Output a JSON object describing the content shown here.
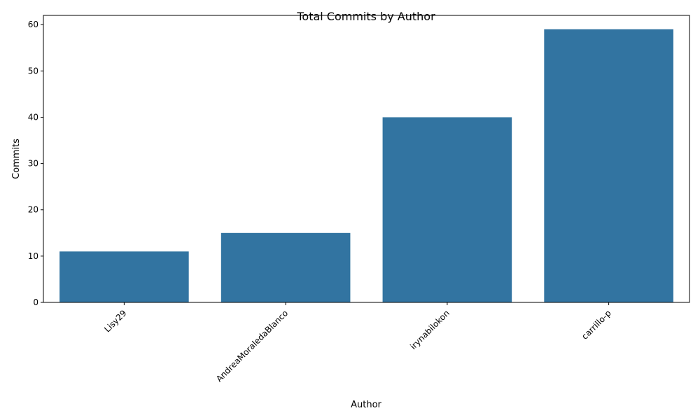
{
  "chart_data": {
    "type": "bar",
    "title": "Total Commits by Author",
    "xlabel": "Author",
    "ylabel": "Commits",
    "categories": [
      "Lisy29",
      "AndreaMoraledaBlanco",
      "irynabilokon",
      "carrillo-p"
    ],
    "values": [
      11,
      15,
      40,
      59
    ],
    "ylim": [
      0,
      62
    ],
    "yticks": [
      0,
      10,
      20,
      30,
      40,
      50,
      60
    ],
    "xtick_rotation_deg": 45,
    "grid": false,
    "legend": "none",
    "bar_color": "#3274a1"
  }
}
